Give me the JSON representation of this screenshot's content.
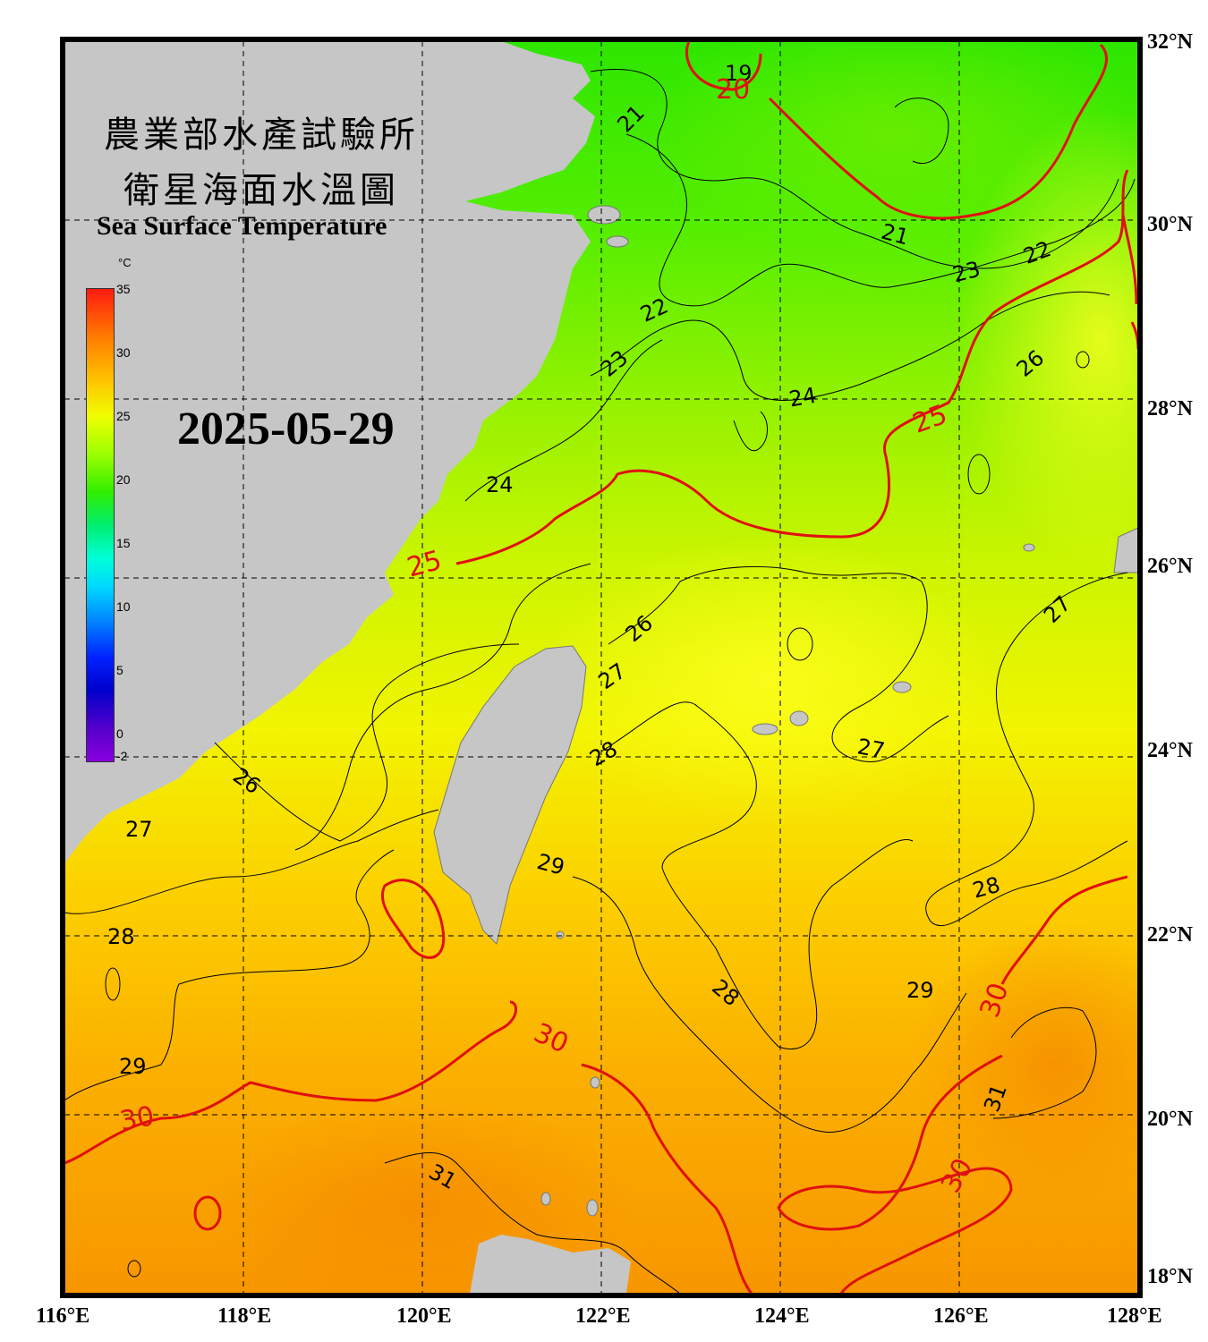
{
  "title": {
    "zh_line1": "農業部水產試驗所",
    "zh_line2": "衛星海面水溫圖",
    "en": "Sea Surface Temperature"
  },
  "date": "2025-05-29",
  "colorbar": {
    "unit": "°C",
    "ticks": [
      "35",
      "30",
      "25",
      "20",
      "15",
      "10",
      "5",
      "0",
      "-2"
    ],
    "range": [
      -2,
      35
    ]
  },
  "axes": {
    "lon_labels": [
      "116°E",
      "118°E",
      "120°E",
      "122°E",
      "124°E",
      "126°E",
      "128°E"
    ],
    "lat_labels": [
      "32°N",
      "30°N",
      "28°N",
      "26°N",
      "24°N",
      "22°N",
      "20°N",
      "18°N"
    ],
    "lon_range": [
      116,
      128
    ],
    "lat_range": [
      18,
      32
    ]
  },
  "contour_labels": [
    "19",
    "20",
    "21",
    "21",
    "22",
    "22",
    "23",
    "23",
    "24",
    "24",
    "25",
    "25",
    "26",
    "26",
    "26",
    "27",
    "27",
    "27",
    "27",
    "28",
    "28",
    "28",
    "28",
    "29",
    "29",
    "29",
    "30",
    "30",
    "30",
    "30",
    "31",
    "31"
  ],
  "colors": {
    "land": "#c6c6c6",
    "frame": "#000000",
    "contour_major": "#e01010",
    "contour_minor": "#000000"
  }
}
